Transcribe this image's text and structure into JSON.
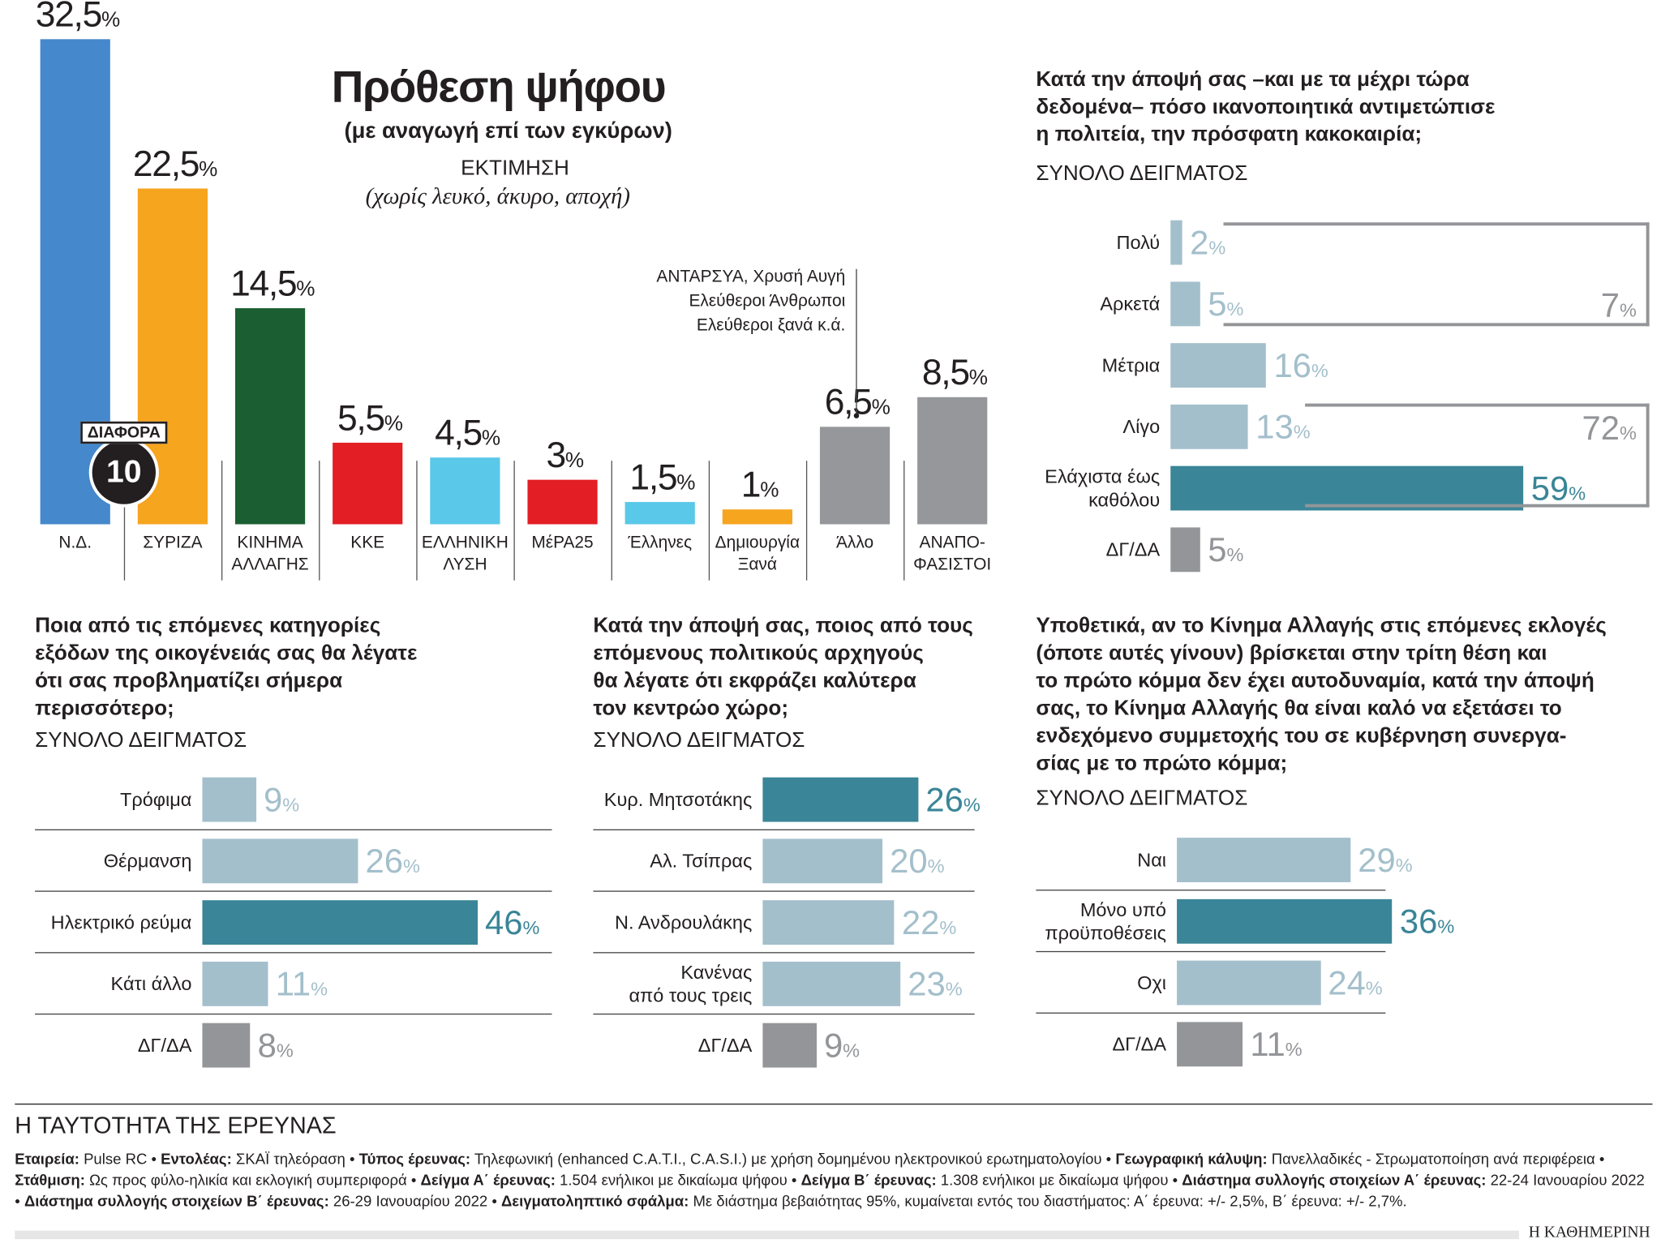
{
  "colors": {
    "light": "#a3bfcb",
    "dark": "#3a8597",
    "gray": "#939598"
  },
  "header": {
    "title": "Πρόθεση ψήφου",
    "subtitle": "(με αναγωγή επί των εγκύρων)",
    "estimate": "ΕΚΤΙΜΗΣΗ",
    "note": "(χωρίς λευκό, άκυρο, αποχή)"
  },
  "difference": {
    "label": "ΔΙΑΦΟΡΑ",
    "value": "10"
  },
  "others_note": [
    "ΑΝΤΑΡΣΥΑ, Χρυσή Αυγή",
    "Ελεύθεροι Άνθρωποι",
    "Ελεύθεροι ξανά κ.ά."
  ],
  "chart_data": [
    {
      "type": "bar",
      "title": "Πρόθεση ψήφου",
      "categories": [
        "Ν.Δ.",
        "ΣΥΡΙΖΑ",
        "ΚΙΝΗΜΑ ΑΛΛΑΓΗΣ",
        "ΚΚΕ",
        "ΕΛΛΗΝΙΚΗ ΛΥΣΗ",
        "ΜέΡΑ25",
        "Έλληνες",
        "Δημιουργία Ξανά",
        "Άλλο",
        "ΑΝΑΠΟ-ΦΑΣΙΣΤΟΙ"
      ],
      "labels": [
        [
          "Ν.Δ."
        ],
        [
          "ΣΥΡΙΖΑ"
        ],
        [
          "ΚΙΝΗΜΑ",
          "ΑΛΛΑΓΗΣ"
        ],
        [
          "ΚΚΕ"
        ],
        [
          "ΕΛΛΗΝΙΚΗ",
          "ΛΥΣΗ"
        ],
        [
          "ΜέΡΑ25"
        ],
        [
          "Έλληνες"
        ],
        [
          "Δημιουργία",
          "Ξανά"
        ],
        [
          "Άλλο"
        ],
        [
          "ΑΝΑΠΟ-",
          "ΦΑΣΙΣΤΟΙ"
        ]
      ],
      "values": [
        32.5,
        22.5,
        14.5,
        5.5,
        4.5,
        3,
        1.5,
        1,
        6.5,
        8.5
      ],
      "value_labels": [
        "32,5",
        "22,5",
        "14,5",
        "5,5",
        "4,5",
        "3",
        "1,5",
        "1",
        "6,5",
        "8,5"
      ],
      "colors": [
        "#4588cc",
        "#f6a51f",
        "#1a5e31",
        "#e31e25",
        "#5ac8e8",
        "#e31e25",
        "#5ac8e8",
        "#f6a51f",
        "#96979a",
        "#96979a"
      ],
      "unit": "%"
    },
    {
      "type": "bar",
      "orientation": "horizontal",
      "title": "Κατά την άποψή σας –και με τα μέχρι τώρα δεδομένα– πόσο ικανοποιητικά αντιμετώπισε η πολιτεία, την πρόσφατη κακοκαιρία;",
      "subtitle": "ΣΥΝΟΛΟ ΔΕΙΓΜΑΤΟΣ",
      "categories": [
        [
          "Πολύ"
        ],
        [
          "Αρκετά"
        ],
        [
          "Μέτρια"
        ],
        [
          "Λίγο"
        ],
        [
          "Ελάχιστα έως",
          "καθόλου"
        ],
        [
          "ΔΓ/ΔΑ"
        ]
      ],
      "values": [
        2,
        5,
        16,
        13,
        59,
        5
      ],
      "tones": [
        "light",
        "light",
        "light",
        "light",
        "dark",
        "gray"
      ],
      "groups": [
        {
          "label": "7",
          "rows": [
            0,
            1
          ]
        },
        {
          "label": "72",
          "rows": [
            3,
            4
          ]
        }
      ],
      "unit": "%"
    },
    {
      "type": "bar",
      "orientation": "horizontal",
      "title": "Ποια από τις επόμενες κατηγορίες εξόδων της οικογένειάς σας θα λέγατε ότι σας προβληματίζει σήμερα περισσότερο;",
      "subtitle": "ΣΥΝΟΛΟ ΔΕΙΓΜΑΤΟΣ",
      "categories": [
        [
          "Τρόφιμα"
        ],
        [
          "Θέρμανση"
        ],
        [
          "Ηλεκτρικό ρεύμα"
        ],
        [
          "Κάτι άλλο"
        ],
        [
          "ΔΓ/ΔΑ"
        ]
      ],
      "values": [
        9,
        26,
        46,
        11,
        8
      ],
      "tones": [
        "light",
        "light",
        "dark",
        "light",
        "gray"
      ],
      "unit": "%"
    },
    {
      "type": "bar",
      "orientation": "horizontal",
      "title": "Κατά την άποψή σας, ποιος από τους επόμενους πολιτικούς αρχηγούς θα λέγατε ότι εκφράζει καλύτερα τον κεντρώο χώρο;",
      "subtitle": "ΣΥΝΟΛΟ ΔΕΙΓΜΑΤΟΣ",
      "categories": [
        [
          "Κυρ. Μητσοτάκης"
        ],
        [
          "Αλ. Τσίπρας"
        ],
        [
          "Ν. Ανδρουλάκης"
        ],
        [
          "Κανένας",
          "από τους τρεις"
        ],
        [
          "ΔΓ/ΔΑ"
        ]
      ],
      "values": [
        26,
        20,
        22,
        23,
        9
      ],
      "tones": [
        "dark",
        "light",
        "light",
        "light",
        "gray"
      ],
      "unit": "%"
    },
    {
      "type": "bar",
      "orientation": "horizontal",
      "title": "Υποθετικά, αν το Κίνημα Αλλαγής στις επόμενες εκλογές (όποτε αυτές γίνουν) βρίσκεται στην τρίτη θέση και το πρώτο κόμμα δεν έχει αυτοδυναμία, κατά την άποψή σας, το Κίνημα Αλλαγής θα είναι καλό να εξετάσει το ενδεχόμενο συμμετοχής του σε κυβέρνηση συνεργα-σίας με το πρώτο κόμμα;",
      "subtitle": "ΣΥΝΟΛΟ ΔΕΙΓΜΑΤΟΣ",
      "categories": [
        [
          "Ναι"
        ],
        [
          "Μόνο υπό",
          "προϋποθέσεις"
        ],
        [
          "Οχι"
        ],
        [
          "ΔΓ/ΔΑ"
        ]
      ],
      "values": [
        29,
        36,
        24,
        11
      ],
      "tones": [
        "light",
        "dark",
        "light",
        "gray"
      ],
      "unit": "%"
    }
  ],
  "questions": {
    "q1": [
      "Κατά την άποψή σας –και με τα μέχρι τώρα",
      "δεδομένα– πόσο ικανοποιητικά αντιμετώπισε",
      "η πολιτεία, την πρόσφατη κακοκαιρία;"
    ],
    "q2": [
      "Ποια από τις επόμενες κατηγορίες",
      "εξόδων της οικογένειάς σας θα λέγατε",
      "ότι σας προβληματίζει σήμερα",
      "περισσότερο;"
    ],
    "q3": [
      "Κατά την άποψή σας, ποιος από τους",
      "επόμενους πολιτικούς αρχηγούς",
      "θα λέγατε ότι εκφράζει καλύτερα",
      "τον κεντρώο χώρο;"
    ],
    "q4": [
      "Υποθετικά, αν το Κίνημα Αλλαγής στις επόμενες εκλογές",
      "(όποτε αυτές γίνουν) βρίσκεται στην τρίτη θέση και",
      "το πρώτο κόμμα δεν έχει αυτοδυναμία, κατά την άποψή",
      "σας, το Κίνημα Αλλαγής θα είναι καλό να εξετάσει το",
      "ενδεχόμενο συμμετοχής του σε κυβέρνηση συνεργα-",
      "σίας με το πρώτο κόμμα;"
    ],
    "total": "ΣΥΝΟΛΟ ΔΕΙΓΜΑΤΟΣ"
  },
  "footer": {
    "heading": "Η ΤΑΥΤΟΤΗΤΑ ΤΗΣ ΕΡΕΥΝΑΣ",
    "items": [
      {
        "k": "Εταιρεία:",
        "v": " Pulse RC"
      },
      {
        "k": "Εντολέας:",
        "v": " ΣΚΑΪ τηλεόραση"
      },
      {
        "k": "Τύπος έρευνας:",
        "v": " Τηλεφωνική (enhanced C.A.T.I., C.A.S.I.) με χρήση δομημένου ηλεκτρονικού ερωτηματολογίου"
      },
      {
        "k": "Γεωγραφική κάλυψη:",
        "v": " Πανελλαδικές - Στρωματοποίηση ανά περιφέρεια"
      },
      {
        "k": "Στάθμιση:",
        "v": " Ως προς φύλο-ηλικία και εκλογική συμπεριφορά"
      },
      {
        "k": "Δείγμα Α΄ έρευνας:",
        "v": " 1.504 ενήλικοι με δικαίωμα ψήφου"
      },
      {
        "k": "Δείγμα Β΄ έρευνας:",
        "v": " 1.308 ενήλικοι με δικαίωμα ψήφου"
      },
      {
        "k": "Διάστημα συλλογής στοιχείων Α΄ έρευνας:",
        "v": " 22-24 Ιανουαρίου 2022"
      },
      {
        "k": "Διάστημα συλλογής στοιχείων Β΄ έρευνας:",
        "v": " 26-29 Ιανουαρίου 2022"
      },
      {
        "k": "Δειγματοληπτικό σφάλμα:",
        "v": " Με διάστημα βεβαιότητας 95%, κυμαίνεται εντός του διαστήματος: Α΄ έρευνα: +/- 2,5%, Β΄ έρευνα: +/- 2,7%."
      }
    ],
    "brand": "Η ΚΑΘΗΜΕΡΙΝΗ"
  }
}
